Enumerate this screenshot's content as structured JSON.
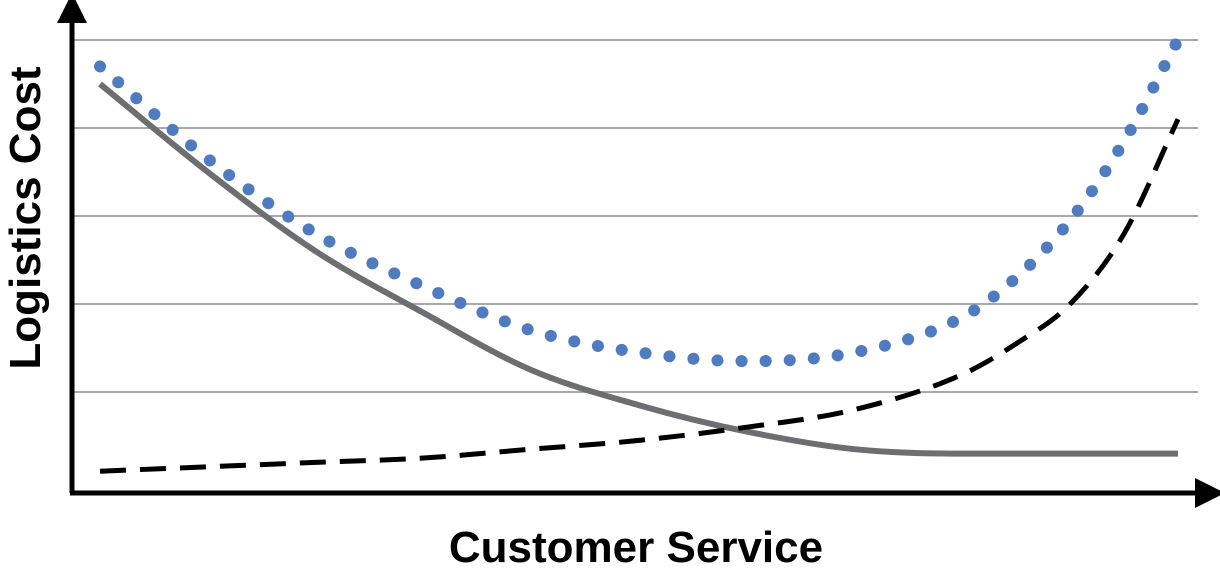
{
  "chart_data": {
    "type": "line",
    "title": "",
    "xlabel": "Customer Service",
    "ylabel": "Logistics Cost",
    "xlim": [
      0,
      1
    ],
    "ylim": [
      0,
      1
    ],
    "grid": true,
    "grid_lines_y": [
      0.2,
      0.4,
      0.6,
      0.8,
      1.0
    ],
    "x_ticks_labeled": false,
    "y_ticks_labeled": false,
    "legend": "none",
    "series": [
      {
        "style": "solid",
        "color": "#6d6e71",
        "x": [
          0.0,
          0.1,
          0.2,
          0.3,
          0.4,
          0.5,
          0.6,
          0.7,
          0.8,
          0.9,
          1.0
        ],
        "y": [
          0.9,
          0.7,
          0.52,
          0.38,
          0.25,
          0.17,
          0.11,
          0.07,
          0.06,
          0.06,
          0.06
        ]
      },
      {
        "style": "dashed",
        "color": "#000000",
        "x": [
          0.0,
          0.1,
          0.2,
          0.3,
          0.4,
          0.5,
          0.6,
          0.7,
          0.8,
          0.85,
          0.9,
          0.95,
          1.0
        ],
        "y": [
          0.02,
          0.03,
          0.04,
          0.05,
          0.07,
          0.09,
          0.12,
          0.16,
          0.24,
          0.31,
          0.4,
          0.56,
          0.82
        ]
      },
      {
        "style": "dotted",
        "color": "#4f7cc1",
        "x": [
          0.0,
          0.1,
          0.2,
          0.3,
          0.4,
          0.5,
          0.6,
          0.7,
          0.8,
          0.85,
          0.9,
          0.95,
          1.0
        ],
        "y": [
          0.94,
          0.73,
          0.56,
          0.44,
          0.34,
          0.29,
          0.27,
          0.29,
          0.37,
          0.46,
          0.59,
          0.77,
          1.0
        ]
      }
    ]
  }
}
